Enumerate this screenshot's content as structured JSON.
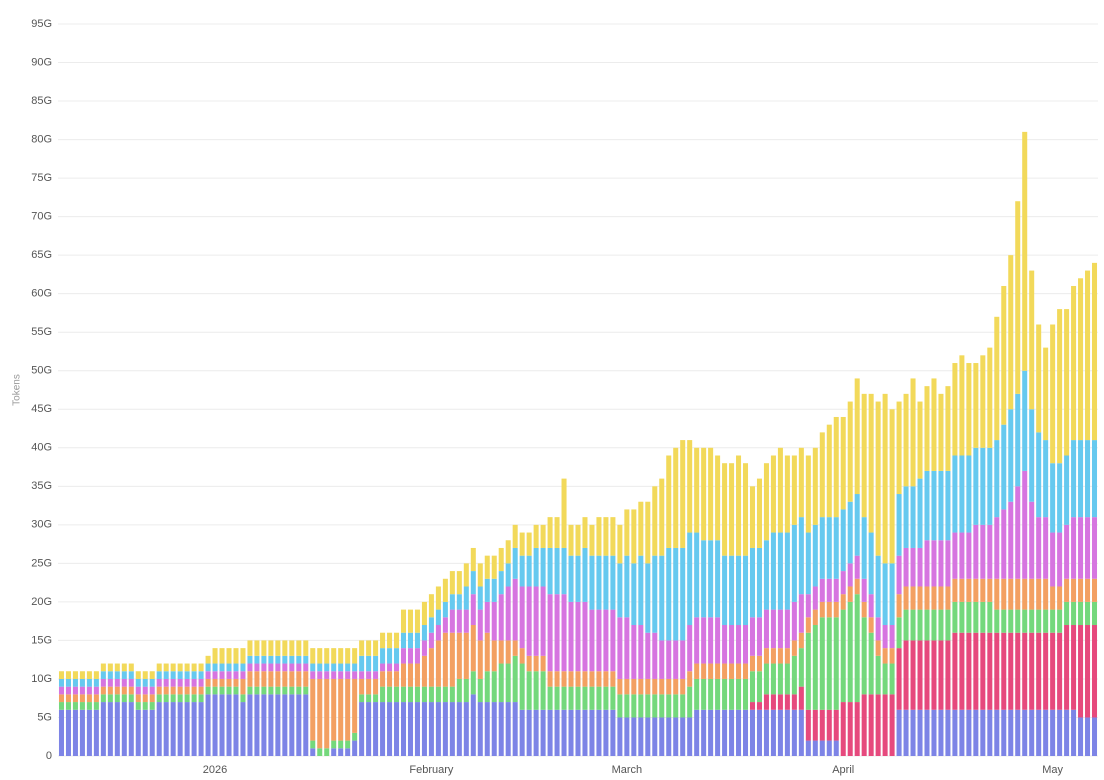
{
  "chart_data": {
    "type": "stacked-bar",
    "y_label": "Tokens",
    "grid": true,
    "ylim": [
      0,
      95
    ],
    "yticks": [
      0,
      {
        "value": 5,
        "label": "5G"
      },
      {
        "value": 10,
        "label": "10G"
      },
      {
        "value": 15,
        "label": "15G"
      },
      {
        "value": 20,
        "label": "20G"
      },
      {
        "value": 25,
        "label": "25G"
      },
      {
        "value": 30,
        "label": "30G"
      },
      {
        "value": 35,
        "label": "35G"
      },
      {
        "value": 40,
        "label": "40G"
      },
      {
        "value": 45,
        "label": "45G"
      },
      {
        "value": 50,
        "label": "50G"
      },
      {
        "value": 55,
        "label": "55G"
      },
      {
        "value": 60,
        "label": "60G"
      },
      {
        "value": 65,
        "label": "65G"
      },
      {
        "value": 70,
        "label": "70G"
      },
      {
        "value": 75,
        "label": "75G"
      },
      {
        "value": 80,
        "label": "80G"
      },
      {
        "value": 85,
        "label": "85G"
      },
      {
        "value": 90,
        "label": "90G"
      },
      {
        "value": 95,
        "label": "95G"
      }
    ],
    "categories": [
      null,
      null,
      null,
      null,
      null,
      null,
      null,
      null,
      null,
      null,
      null,
      null,
      null,
      null,
      null,
      null,
      null,
      null,
      null,
      null,
      null,
      null,
      "2026",
      null,
      null,
      null,
      null,
      null,
      null,
      null,
      null,
      null,
      null,
      null,
      null,
      null,
      null,
      null,
      null,
      null,
      null,
      null,
      null,
      null,
      null,
      null,
      null,
      null,
      null,
      null,
      null,
      null,
      null,
      "February",
      null,
      null,
      null,
      null,
      null,
      null,
      null,
      null,
      null,
      null,
      null,
      null,
      null,
      null,
      null,
      null,
      null,
      null,
      null,
      null,
      null,
      null,
      null,
      null,
      null,
      null,
      null,
      "March",
      null,
      null,
      null,
      null,
      null,
      null,
      null,
      null,
      null,
      null,
      null,
      null,
      null,
      null,
      null,
      null,
      null,
      null,
      null,
      null,
      null,
      null,
      null,
      null,
      null,
      null,
      null,
      null,
      null,
      null,
      "April",
      null,
      null,
      null,
      null,
      null,
      null,
      null,
      null,
      null,
      null,
      null,
      null,
      null,
      null,
      null,
      null,
      null,
      null,
      null,
      null,
      null,
      null,
      null,
      null,
      null,
      null,
      null,
      null,
      null,
      "May",
      null,
      null,
      null,
      null,
      null,
      null
    ],
    "series": [
      {
        "color": "#7d84e6",
        "values": [
          6,
          6,
          6,
          6,
          6,
          6,
          7,
          7,
          7,
          7,
          7,
          6,
          6,
          6,
          7,
          7,
          7,
          7,
          7,
          7,
          7,
          8,
          8,
          8,
          8,
          8,
          7,
          8,
          8,
          8,
          8,
          8,
          8,
          8,
          8,
          8,
          1,
          0,
          0,
          1,
          1,
          1,
          2,
          7,
          7,
          7,
          7,
          7,
          7,
          7,
          7,
          7,
          7,
          7,
          7,
          7,
          7,
          7,
          7,
          8,
          7,
          7,
          7,
          7,
          7,
          7,
          6,
          6,
          6,
          6,
          6,
          6,
          6,
          6,
          6,
          6,
          6,
          6,
          6,
          6,
          5,
          5,
          5,
          5,
          5,
          5,
          5,
          5,
          5,
          5,
          5,
          6,
          6,
          6,
          6,
          6,
          6,
          6,
          6,
          6,
          6,
          6,
          6,
          6,
          6,
          6,
          6,
          2,
          2,
          2,
          2,
          2,
          0,
          0,
          0,
          0,
          0,
          0,
          0,
          0,
          6,
          6,
          6,
          6,
          6,
          6,
          6,
          6,
          6,
          6,
          6,
          6,
          6,
          6,
          6,
          6,
          6,
          6,
          6,
          6,
          6,
          6,
          6,
          6,
          6,
          6,
          5,
          5,
          5
        ]
      },
      {
        "color": "#e6497d",
        "values": [
          0,
          0,
          0,
          0,
          0,
          0,
          0,
          0,
          0,
          0,
          0,
          0,
          0,
          0,
          0,
          0,
          0,
          0,
          0,
          0,
          0,
          0,
          0,
          0,
          0,
          0,
          0,
          0,
          0,
          0,
          0,
          0,
          0,
          0,
          0,
          0,
          0,
          0,
          0,
          0,
          0,
          0,
          0,
          0,
          0,
          0,
          0,
          0,
          0,
          0,
          0,
          0,
          0,
          0,
          0,
          0,
          0,
          0,
          0,
          0,
          0,
          0,
          0,
          0,
          0,
          0,
          0,
          0,
          0,
          0,
          0,
          0,
          0,
          0,
          0,
          0,
          0,
          0,
          0,
          0,
          0,
          0,
          0,
          0,
          0,
          0,
          0,
          0,
          0,
          0,
          0,
          0,
          0,
          0,
          0,
          0,
          0,
          0,
          0,
          1,
          1,
          2,
          2,
          2,
          2,
          2,
          3,
          4,
          4,
          4,
          4,
          4,
          7,
          7,
          7,
          8,
          8,
          8,
          8,
          8,
          8,
          9,
          9,
          9,
          9,
          9,
          9,
          9,
          10,
          10,
          10,
          10,
          10,
          10,
          10,
          10,
          10,
          10,
          10,
          10,
          10,
          10,
          10,
          10,
          11,
          11,
          12,
          12,
          12
        ]
      },
      {
        "color": "#74d87c",
        "values": [
          1,
          1,
          1,
          1,
          1,
          1,
          1,
          1,
          1,
          1,
          1,
          1,
          1,
          1,
          1,
          1,
          1,
          1,
          1,
          1,
          1,
          1,
          1,
          1,
          1,
          1,
          1,
          1,
          1,
          1,
          1,
          1,
          1,
          1,
          1,
          1,
          1,
          1,
          1,
          1,
          1,
          1,
          1,
          1,
          1,
          1,
          2,
          2,
          2,
          2,
          2,
          2,
          2,
          2,
          2,
          2,
          2,
          3,
          3,
          3,
          3,
          4,
          4,
          5,
          5,
          6,
          6,
          5,
          5,
          5,
          3,
          3,
          3,
          3,
          3,
          3,
          3,
          3,
          3,
          3,
          3,
          3,
          3,
          3,
          3,
          3,
          3,
          3,
          3,
          3,
          4,
          4,
          4,
          4,
          4,
          4,
          4,
          4,
          4,
          4,
          4,
          4,
          4,
          4,
          4,
          5,
          5,
          10,
          11,
          12,
          12,
          12,
          12,
          13,
          14,
          10,
          8,
          5,
          4,
          4,
          4,
          4,
          4,
          4,
          4,
          4,
          4,
          4,
          4,
          4,
          4,
          4,
          4,
          4,
          3,
          3,
          3,
          3,
          3,
          3,
          3,
          3,
          3,
          3,
          3,
          3,
          3,
          3,
          3
        ]
      },
      {
        "color": "#f3a062",
        "values": [
          1,
          1,
          1,
          1,
          1,
          1,
          1,
          1,
          1,
          1,
          1,
          1,
          1,
          1,
          1,
          1,
          1,
          1,
          1,
          1,
          1,
          1,
          1,
          1,
          1,
          1,
          2,
          2,
          2,
          2,
          2,
          2,
          2,
          2,
          2,
          2,
          8,
          9,
          9,
          8,
          8,
          8,
          7,
          2,
          2,
          2,
          2,
          2,
          2,
          3,
          3,
          3,
          4,
          5,
          6,
          7,
          7,
          6,
          6,
          6,
          5,
          5,
          4,
          3,
          3,
          2,
          2,
          2,
          2,
          2,
          2,
          2,
          2,
          2,
          2,
          2,
          2,
          2,
          2,
          2,
          2,
          2,
          2,
          2,
          2,
          2,
          2,
          2,
          2,
          2,
          2,
          2,
          2,
          2,
          2,
          2,
          2,
          2,
          2,
          2,
          2,
          2,
          2,
          2,
          2,
          2,
          2,
          2,
          2,
          2,
          2,
          2,
          2,
          2,
          2,
          2,
          2,
          2,
          2,
          2,
          3,
          3,
          3,
          3,
          3,
          3,
          3,
          3,
          3,
          3,
          3,
          3,
          3,
          3,
          4,
          4,
          4,
          4,
          4,
          4,
          4,
          4,
          3,
          3,
          3,
          3,
          3,
          3,
          3
        ]
      },
      {
        "color": "#d675e0",
        "values": [
          1,
          1,
          1,
          1,
          1,
          1,
          1,
          1,
          1,
          1,
          1,
          1,
          1,
          1,
          1,
          1,
          1,
          1,
          1,
          1,
          1,
          1,
          1,
          1,
          1,
          1,
          1,
          1,
          1,
          1,
          1,
          1,
          1,
          1,
          1,
          1,
          1,
          1,
          1,
          1,
          1,
          1,
          1,
          1,
          1,
          1,
          1,
          1,
          1,
          2,
          2,
          2,
          2,
          2,
          2,
          2,
          3,
          3,
          3,
          4,
          4,
          4,
          5,
          6,
          7,
          8,
          8,
          9,
          9,
          9,
          10,
          10,
          10,
          9,
          9,
          9,
          8,
          8,
          8,
          8,
          8,
          8,
          7,
          7,
          6,
          6,
          5,
          5,
          5,
          5,
          6,
          6,
          6,
          6,
          6,
          5,
          5,
          5,
          5,
          5,
          5,
          5,
          5,
          5,
          5,
          5,
          5,
          3,
          3,
          3,
          3,
          3,
          3,
          3,
          3,
          3,
          3,
          3,
          3,
          3,
          5,
          5,
          5,
          5,
          6,
          6,
          6,
          6,
          6,
          6,
          6,
          7,
          7,
          7,
          8,
          9,
          10,
          12,
          14,
          10,
          8,
          8,
          7,
          7,
          7,
          8,
          8,
          8,
          8
        ]
      },
      {
        "color": "#66c9ef",
        "values": [
          1,
          1,
          1,
          1,
          1,
          1,
          1,
          1,
          1,
          1,
          1,
          1,
          1,
          1,
          1,
          1,
          1,
          1,
          1,
          1,
          1,
          1,
          1,
          1,
          1,
          1,
          1,
          1,
          1,
          1,
          1,
          1,
          1,
          1,
          1,
          1,
          1,
          1,
          1,
          1,
          1,
          1,
          1,
          2,
          2,
          2,
          2,
          2,
          2,
          2,
          2,
          2,
          2,
          2,
          2,
          2,
          2,
          2,
          3,
          3,
          3,
          3,
          3,
          3,
          3,
          4,
          4,
          4,
          5,
          5,
          6,
          6,
          6,
          6,
          6,
          7,
          7,
          7,
          7,
          7,
          7,
          8,
          8,
          9,
          9,
          10,
          11,
          12,
          12,
          12,
          12,
          11,
          10,
          10,
          10,
          9,
          9,
          9,
          9,
          9,
          9,
          9,
          10,
          10,
          10,
          10,
          10,
          8,
          8,
          8,
          8,
          8,
          8,
          8,
          8,
          8,
          8,
          8,
          8,
          8,
          8,
          8,
          8,
          9,
          9,
          9,
          9,
          9,
          10,
          10,
          10,
          10,
          10,
          10,
          10,
          11,
          12,
          12,
          13,
          12,
          11,
          10,
          9,
          9,
          9,
          10,
          10,
          10,
          10
        ]
      },
      {
        "color": "#f2d95a",
        "values": [
          1,
          1,
          1,
          1,
          1,
          1,
          1,
          1,
          1,
          1,
          1,
          1,
          1,
          1,
          1,
          1,
          1,
          1,
          1,
          1,
          1,
          1,
          2,
          2,
          2,
          2,
          2,
          2,
          2,
          2,
          2,
          2,
          2,
          2,
          2,
          2,
          2,
          2,
          2,
          2,
          2,
          2,
          2,
          2,
          2,
          2,
          2,
          2,
          2,
          3,
          3,
          3,
          3,
          3,
          3,
          3,
          3,
          3,
          3,
          3,
          3,
          3,
          3,
          3,
          3,
          3,
          3,
          3,
          3,
          3,
          4,
          4,
          9,
          4,
          4,
          4,
          4,
          5,
          5,
          5,
          5,
          6,
          7,
          7,
          8,
          9,
          10,
          12,
          13,
          14,
          12,
          11,
          12,
          12,
          11,
          12,
          12,
          13,
          12,
          8,
          9,
          10,
          10,
          11,
          10,
          9,
          9,
          10,
          10,
          11,
          12,
          13,
          12,
          13,
          15,
          16,
          18,
          20,
          22,
          20,
          12,
          12,
          14,
          10,
          11,
          12,
          10,
          11,
          12,
          13,
          12,
          11,
          12,
          13,
          16,
          18,
          20,
          25,
          31,
          18,
          14,
          12,
          18,
          20,
          19,
          20,
          21,
          22,
          23
        ]
      }
    ]
  }
}
